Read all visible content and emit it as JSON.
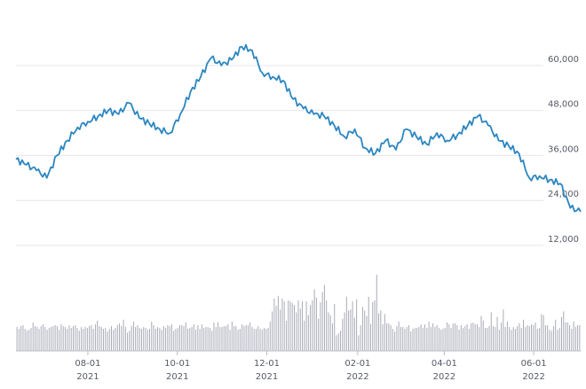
{
  "chart_data": {
    "type": "line",
    "price": {
      "x": [
        "2021-06-13",
        "2021-06-20",
        "2021-06-27",
        "2021-07-04",
        "2021-07-11",
        "2021-07-18",
        "2021-07-25",
        "2021-08-01",
        "2021-08-08",
        "2021-08-15",
        "2021-08-22",
        "2021-08-29",
        "2021-09-05",
        "2021-09-12",
        "2021-09-19",
        "2021-09-26",
        "2021-10-03",
        "2021-10-10",
        "2021-10-17",
        "2021-10-24",
        "2021-10-31",
        "2021-11-07",
        "2021-11-14",
        "2021-11-21",
        "2021-11-28",
        "2021-12-05",
        "2021-12-12",
        "2021-12-19",
        "2021-12-26",
        "2022-01-02",
        "2022-01-09",
        "2022-01-16",
        "2022-01-23",
        "2022-01-30",
        "2022-02-06",
        "2022-02-13",
        "2022-02-20",
        "2022-02-27",
        "2022-03-06",
        "2022-03-13",
        "2022-03-20",
        "2022-03-27",
        "2022-04-03",
        "2022-04-10",
        "2022-04-17",
        "2022-04-24",
        "2022-05-01",
        "2022-05-08",
        "2022-05-15",
        "2022-05-22",
        "2022-05-29",
        "2022-06-05",
        "2022-06-12",
        "2022-06-19",
        "2022-06-26",
        "2022-07-03"
      ],
      "y": [
        35000,
        33500,
        32000,
        30000,
        36000,
        40000,
        43500,
        45000,
        46500,
        48000,
        47000,
        50000,
        46000,
        44500,
        43000,
        42000,
        47000,
        53000,
        57000,
        62000,
        60000,
        61500,
        65000,
        64000,
        58000,
        57000,
        56000,
        51000,
        48500,
        47000,
        46500,
        44000,
        41000,
        43000,
        38000,
        36500,
        40000,
        37500,
        43000,
        41000,
        39000,
        42000,
        40000,
        41500,
        44000,
        46500,
        44000,
        40000,
        38500,
        36500,
        30000,
        30500,
        29500,
        28500,
        22000,
        21000
      ]
    },
    "volume": {
      "values": [
        26,
        24,
        27,
        28,
        24,
        22,
        23,
        25,
        31,
        27,
        26,
        24,
        27,
        29,
        26,
        23,
        25,
        26,
        27,
        28,
        27,
        23,
        29,
        27,
        26,
        24,
        28,
        25,
        27,
        28,
        25,
        22,
        26,
        24,
        26,
        25,
        27,
        28,
        24,
        29,
        33,
        27,
        26,
        24,
        25,
        21,
        24,
        27,
        23,
        25,
        28,
        30,
        27,
        34,
        26,
        20,
        22,
        27,
        32,
        26,
        28,
        25,
        24,
        26,
        25,
        23,
        24,
        32,
        28,
        24,
        26,
        25,
        23,
        27,
        25,
        28,
        27,
        29,
        22,
        24,
        25,
        28,
        28,
        27,
        31,
        24,
        25,
        26,
        29,
        23,
        28,
        24,
        29,
        25,
        26,
        26,
        25,
        22,
        31,
        26,
        31,
        26,
        26,
        27,
        27,
        29,
        23,
        32,
        27,
        27,
        23,
        24,
        29,
        27,
        28,
        28,
        31,
        26,
        24,
        24,
        27,
        24,
        23,
        25,
        24,
        25,
        32,
        43,
        57,
        49,
        60,
        45,
        57,
        54,
        33,
        55,
        54,
        52,
        50,
        42,
        55,
        46,
        54,
        33,
        54,
        39,
        50,
        55,
        67,
        58,
        35,
        53,
        64,
        72,
        55,
        42,
        39,
        30,
        51,
        17,
        19,
        22,
        35,
        42,
        59,
        44,
        45,
        54,
        36,
        56,
        17,
        28,
        48,
        44,
        38,
        59,
        29,
        53,
        55,
        83,
        41,
        44,
        29,
        40,
        30,
        30,
        28,
        24,
        21,
        27,
        32,
        26,
        26,
        24,
        26,
        28,
        21,
        24,
        25,
        25,
        26,
        29,
        25,
        29,
        25,
        32,
        26,
        30,
        26,
        28,
        25,
        23,
        24,
        25,
        31,
        29,
        25,
        30,
        30,
        28,
        23,
        28,
        25,
        27,
        29,
        24,
        30,
        31,
        29,
        29,
        26,
        38,
        33,
        25,
        25,
        27,
        42,
        27,
        26,
        37,
        23,
        31,
        45,
        26,
        32,
        26,
        23,
        26,
        24,
        27,
        30,
        25,
        34,
        26,
        28,
        27,
        29,
        28,
        31,
        24,
        25,
        40,
        39,
        28,
        28,
        23,
        22,
        27,
        34,
        23,
        25,
        37,
        43,
        31,
        31,
        28,
        24,
        32,
        26,
        28,
        28
      ]
    },
    "x_ticks": [
      {
        "date": "2021-08-01",
        "label_month": "08-01",
        "label_year": "2021"
      },
      {
        "date": "2021-10-01",
        "label_month": "10-01",
        "label_year": "2021"
      },
      {
        "date": "2021-12-01",
        "label_month": "12-01",
        "label_year": "2021"
      },
      {
        "date": "2022-02-01",
        "label_month": "02-01",
        "label_year": "2022"
      },
      {
        "date": "2022-04-01",
        "label_month": "04-01",
        "label_year": "2022"
      },
      {
        "date": "2022-06-01",
        "label_month": "06-01",
        "label_year": "2022"
      }
    ],
    "y_ticks": [
      {
        "value": 12000,
        "label": "12,000"
      },
      {
        "value": 24000,
        "label": "24,000"
      },
      {
        "value": 36000,
        "label": "36,000"
      },
      {
        "value": 48000,
        "label": "48,000"
      },
      {
        "value": 60000,
        "label": "60,000"
      }
    ],
    "xlim": [
      "2021-06-13",
      "2022-07-03"
    ],
    "ylim": [
      12000,
      68000
    ],
    "y_axis_side": "right",
    "grid": "horizontal",
    "legend": "none",
    "colors": {
      "line": "#2b86c0",
      "volume": "#a9abb6",
      "grid": "#e4e6ec",
      "axis": "#b9bdc8",
      "text": "#555a66"
    }
  }
}
